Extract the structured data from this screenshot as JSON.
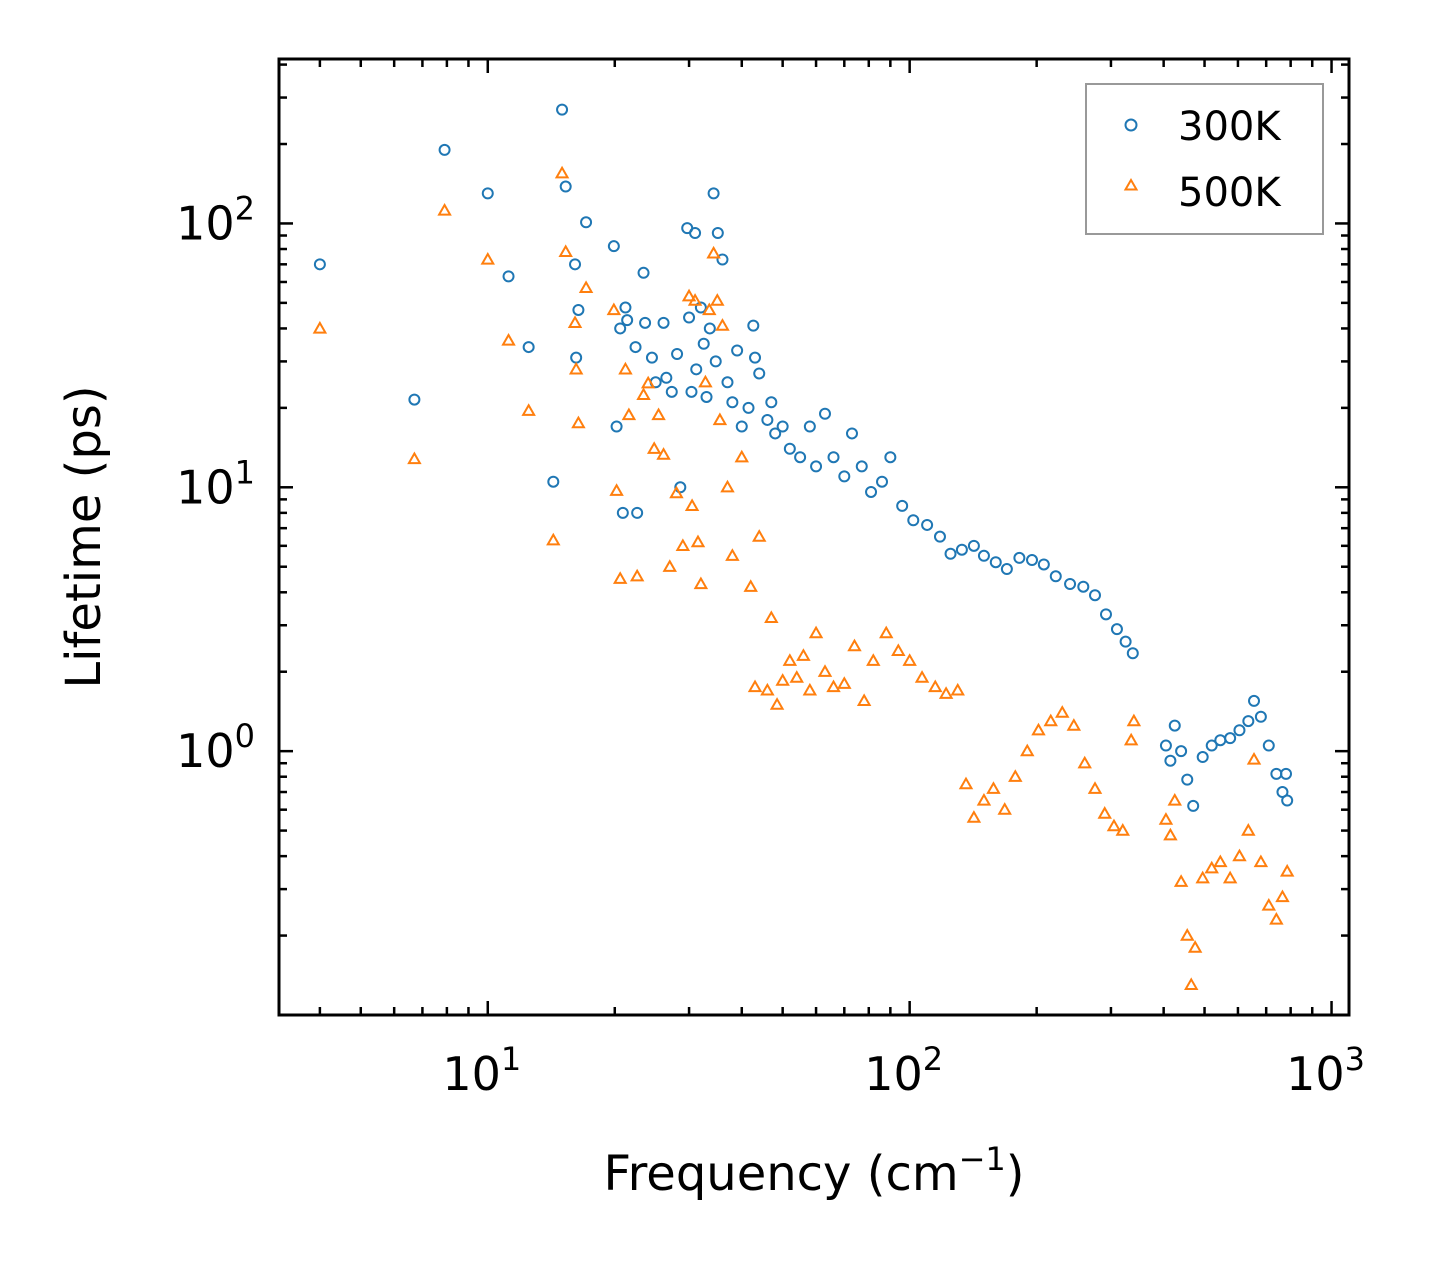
{
  "chart_data": {
    "type": "scatter",
    "xscale": "log",
    "yscale": "log",
    "xlim": [
      3.2,
      1100
    ],
    "ylim": [
      0.1,
      420
    ],
    "xlabel": {
      "base": "Frequency (cm",
      "sup": "−1",
      "close": ")"
    },
    "ylabel": "Lifetime (ps)",
    "legend_position": "top-right",
    "x_ticks": [
      {
        "value": 10,
        "base": "10",
        "exp": "1"
      },
      {
        "value": 100,
        "base": "10",
        "exp": "2"
      },
      {
        "value": 1000,
        "base": "10",
        "exp": "3"
      }
    ],
    "y_ticks": [
      {
        "value": 1,
        "base": "10",
        "exp": "0"
      },
      {
        "value": 10,
        "base": "10",
        "exp": "1"
      },
      {
        "value": 100,
        "base": "10",
        "exp": "2"
      }
    ],
    "series": [
      {
        "name": "300K",
        "marker": "circle",
        "color": "#1f77b4",
        "points": [
          [
            4.0,
            70
          ],
          [
            6.7,
            21.5
          ],
          [
            7.9,
            190
          ],
          [
            10.0,
            130
          ],
          [
            11.2,
            63
          ],
          [
            12.5,
            34
          ],
          [
            14.3,
            10.5
          ],
          [
            15.0,
            270
          ],
          [
            15.3,
            138
          ],
          [
            16.1,
            70
          ],
          [
            16.2,
            31
          ],
          [
            16.4,
            47
          ],
          [
            17.1,
            101
          ],
          [
            19.9,
            82
          ],
          [
            20.2,
            17
          ],
          [
            20.6,
            40
          ],
          [
            20.9,
            8
          ],
          [
            21.2,
            48
          ],
          [
            21.4,
            43
          ],
          [
            22.4,
            34
          ],
          [
            22.6,
            8
          ],
          [
            23.4,
            65
          ],
          [
            23.6,
            42
          ],
          [
            24.5,
            31
          ],
          [
            25.0,
            25
          ],
          [
            26.1,
            42
          ],
          [
            26.5,
            26
          ],
          [
            27.3,
            23
          ],
          [
            28.1,
            32
          ],
          [
            28.6,
            10
          ],
          [
            29.7,
            96
          ],
          [
            30.0,
            44
          ],
          [
            30.4,
            23
          ],
          [
            31.0,
            92
          ],
          [
            31.2,
            28
          ],
          [
            32.0,
            48
          ],
          [
            32.5,
            35
          ],
          [
            33.0,
            22
          ],
          [
            33.6,
            40
          ],
          [
            34.3,
            130
          ],
          [
            34.7,
            30
          ],
          [
            35.1,
            92
          ],
          [
            36.0,
            73
          ],
          [
            37.0,
            25
          ],
          [
            38.0,
            21
          ],
          [
            39.0,
            33
          ],
          [
            40.0,
            17
          ],
          [
            41.5,
            20
          ],
          [
            42.6,
            41
          ],
          [
            43.0,
            31
          ],
          [
            44.0,
            27
          ],
          [
            46.0,
            18
          ],
          [
            47.0,
            21
          ],
          [
            48.0,
            16
          ],
          [
            50.0,
            17
          ],
          [
            52.0,
            14
          ],
          [
            55.0,
            13
          ],
          [
            58.0,
            17
          ],
          [
            60.0,
            12
          ],
          [
            63.0,
            19
          ],
          [
            66.0,
            13
          ],
          [
            70.0,
            11
          ],
          [
            73.0,
            16
          ],
          [
            77.0,
            12
          ],
          [
            81.0,
            9.6
          ],
          [
            86.0,
            10.5
          ],
          [
            90.0,
            13
          ],
          [
            96.0,
            8.5
          ],
          [
            102.0,
            7.5
          ],
          [
            110.0,
            7.2
          ],
          [
            118.0,
            6.5
          ],
          [
            125.0,
            5.6
          ],
          [
            133.0,
            5.8
          ],
          [
            142.0,
            6.0
          ],
          [
            150.0,
            5.5
          ],
          [
            160.0,
            5.2
          ],
          [
            170.0,
            4.9
          ],
          [
            182.0,
            5.4
          ],
          [
            195.0,
            5.3
          ],
          [
            208.0,
            5.1
          ],
          [
            222.0,
            4.6
          ],
          [
            240.0,
            4.3
          ],
          [
            258.0,
            4.2
          ],
          [
            275.0,
            3.9
          ],
          [
            292.0,
            3.3
          ],
          [
            310.0,
            2.9
          ],
          [
            325.0,
            2.6
          ],
          [
            338.0,
            2.35
          ],
          [
            405.0,
            1.05
          ],
          [
            415.0,
            0.92
          ],
          [
            425.0,
            1.25
          ],
          [
            440.0,
            1.0
          ],
          [
            455.0,
            0.78
          ],
          [
            470.0,
            0.62
          ],
          [
            495.0,
            0.95
          ],
          [
            520.0,
            1.05
          ],
          [
            545.0,
            1.1
          ],
          [
            575.0,
            1.12
          ],
          [
            605.0,
            1.2
          ],
          [
            635.0,
            1.3
          ],
          [
            655.0,
            1.55
          ],
          [
            680.0,
            1.35
          ],
          [
            710.0,
            1.05
          ],
          [
            740.0,
            0.82
          ],
          [
            765.0,
            0.7
          ],
          [
            785.0,
            0.65
          ],
          [
            780.0,
            0.82
          ]
        ]
      },
      {
        "name": "500K",
        "marker": "triangle",
        "color": "#ff7f0e",
        "points": [
          [
            4.0,
            40
          ],
          [
            6.7,
            12.8
          ],
          [
            7.9,
            112
          ],
          [
            10.0,
            73
          ],
          [
            11.2,
            36
          ],
          [
            12.5,
            19.5
          ],
          [
            14.3,
            6.3
          ],
          [
            15.0,
            155
          ],
          [
            15.3,
            78
          ],
          [
            16.1,
            42
          ],
          [
            16.2,
            28
          ],
          [
            16.4,
            17.5
          ],
          [
            17.1,
            57
          ],
          [
            19.9,
            47
          ],
          [
            20.2,
            9.7
          ],
          [
            20.6,
            4.5
          ],
          [
            21.2,
            28
          ],
          [
            21.6,
            18.8
          ],
          [
            22.6,
            4.6
          ],
          [
            23.4,
            22.4
          ],
          [
            24.0,
            24.8
          ],
          [
            24.8,
            14
          ],
          [
            25.4,
            18.8
          ],
          [
            26.1,
            13.3
          ],
          [
            27.0,
            5
          ],
          [
            28.0,
            9.5
          ],
          [
            29.0,
            6
          ],
          [
            30.0,
            53
          ],
          [
            30.5,
            8.5
          ],
          [
            31.0,
            51
          ],
          [
            31.5,
            6.2
          ],
          [
            32.0,
            4.3
          ],
          [
            32.8,
            25
          ],
          [
            33.5,
            47
          ],
          [
            34.3,
            77
          ],
          [
            35.0,
            51
          ],
          [
            35.5,
            18
          ],
          [
            36.0,
            41
          ],
          [
            37.0,
            10
          ],
          [
            38.0,
            5.5
          ],
          [
            40.0,
            13
          ],
          [
            42.0,
            4.2
          ],
          [
            43.0,
            1.75
          ],
          [
            44.0,
            6.5
          ],
          [
            46.0,
            1.7
          ],
          [
            47.0,
            3.2
          ],
          [
            48.5,
            1.5
          ],
          [
            50.0,
            1.85
          ],
          [
            52.0,
            2.2
          ],
          [
            54.0,
            1.9
          ],
          [
            56.0,
            2.3
          ],
          [
            58.0,
            1.7
          ],
          [
            60.0,
            2.8
          ],
          [
            63.0,
            2.0
          ],
          [
            66.0,
            1.75
          ],
          [
            70.0,
            1.8
          ],
          [
            74.0,
            2.5
          ],
          [
            78.0,
            1.55
          ],
          [
            82.0,
            2.2
          ],
          [
            88.0,
            2.8
          ],
          [
            94.0,
            2.4
          ],
          [
            100.0,
            2.2
          ],
          [
            107.0,
            1.9
          ],
          [
            115.0,
            1.75
          ],
          [
            122.0,
            1.65
          ],
          [
            130.0,
            1.7
          ],
          [
            136.0,
            0.75
          ],
          [
            142.0,
            0.56
          ],
          [
            150.0,
            0.65
          ],
          [
            158.0,
            0.72
          ],
          [
            168.0,
            0.6
          ],
          [
            178.0,
            0.8
          ],
          [
            190.0,
            1.0
          ],
          [
            202.0,
            1.2
          ],
          [
            216.0,
            1.3
          ],
          [
            230.0,
            1.4
          ],
          [
            245.0,
            1.25
          ],
          [
            260.0,
            0.9
          ],
          [
            275.0,
            0.72
          ],
          [
            290.0,
            0.58
          ],
          [
            305.0,
            0.52
          ],
          [
            320.0,
            0.5
          ],
          [
            335.0,
            1.1
          ],
          [
            340.0,
            1.3
          ],
          [
            405.0,
            0.55
          ],
          [
            415.0,
            0.48
          ],
          [
            425.0,
            0.65
          ],
          [
            440.0,
            0.32
          ],
          [
            455.0,
            0.2
          ],
          [
            465.0,
            0.13
          ],
          [
            475.0,
            0.18
          ],
          [
            495.0,
            0.33
          ],
          [
            520.0,
            0.36
          ],
          [
            545.0,
            0.38
          ],
          [
            575.0,
            0.33
          ],
          [
            605.0,
            0.4
          ],
          [
            635.0,
            0.5
          ],
          [
            655.0,
            0.93
          ],
          [
            680.0,
            0.38
          ],
          [
            710.0,
            0.26
          ],
          [
            740.0,
            0.23
          ],
          [
            765.0,
            0.28
          ],
          [
            785.0,
            0.35
          ]
        ]
      }
    ]
  }
}
